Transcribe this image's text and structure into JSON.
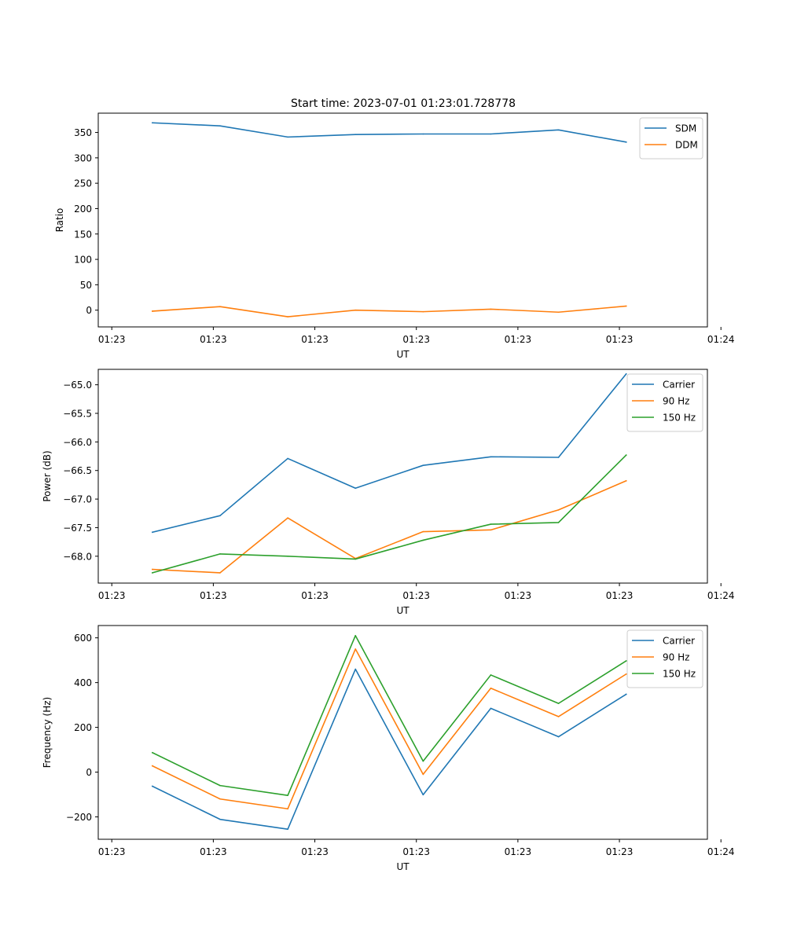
{
  "figure": {
    "title": "Start time: 2023-07-01 01:23:01.728778"
  },
  "chart_data": [
    {
      "type": "line",
      "xlabel": "UT",
      "ylabel": "Ratio",
      "x_tick_labels": [
        "01:23",
        "01:23",
        "01:23",
        "01:23",
        "01:23",
        "01:23",
        "01:24"
      ],
      "x": [
        1,
        2,
        3,
        4,
        5,
        6,
        7,
        8
      ],
      "xlim": [
        0.2,
        9.2
      ],
      "x_ticks": [
        0.4,
        1.9,
        3.4,
        4.9,
        6.4,
        7.9,
        9.4
      ],
      "ylim": [
        -33,
        388
      ],
      "y_ticks": [
        0,
        50,
        100,
        150,
        200,
        250,
        300,
        350
      ],
      "y_tick_labels": [
        "0",
        "50",
        "100",
        "150",
        "200",
        "250",
        "300",
        "350"
      ],
      "legend": "top-right",
      "series": [
        {
          "name": "SDM",
          "color": "#1f77b4",
          "values": [
            369,
            363,
            341,
            346,
            347,
            347,
            355,
            331
          ]
        },
        {
          "name": "DDM",
          "color": "#ff7f0e",
          "values": [
            -2,
            7,
            -13,
            0,
            -3,
            2,
            -4,
            8
          ]
        }
      ]
    },
    {
      "type": "line",
      "xlabel": "UT",
      "ylabel": "Power (dB)",
      "x_tick_labels": [
        "01:23",
        "01:23",
        "01:23",
        "01:23",
        "01:23",
        "01:23",
        "01:24"
      ],
      "x": [
        1,
        2,
        3,
        4,
        5,
        6,
        7,
        8
      ],
      "xlim": [
        0.2,
        9.2
      ],
      "x_ticks": [
        0.4,
        1.9,
        3.4,
        4.9,
        6.4,
        7.9,
        9.4
      ],
      "ylim": [
        -68.47,
        -64.73
      ],
      "y_ticks": [
        -68.0,
        -67.5,
        -67.0,
        -66.5,
        -66.0,
        -65.5,
        -65.0
      ],
      "y_tick_labels": [
        "−68.0",
        "−67.5",
        "−67.0",
        "−66.5",
        "−66.0",
        "−65.5",
        "−65.0"
      ],
      "legend": "top-right",
      "series": [
        {
          "name": "Carrier",
          "color": "#1f77b4",
          "values": [
            -67.58,
            -67.29,
            -66.29,
            -66.81,
            -66.41,
            -66.26,
            -66.27,
            -64.81
          ]
        },
        {
          "name": "90 Hz",
          "color": "#ff7f0e",
          "values": [
            -68.23,
            -68.29,
            -67.33,
            -68.04,
            -67.57,
            -67.54,
            -67.19,
            -66.68
          ]
        },
        {
          "name": "150 Hz",
          "color": "#2ca02c",
          "values": [
            -68.29,
            -67.96,
            -68.0,
            -68.05,
            -67.72,
            -67.44,
            -67.41,
            -66.23
          ]
        }
      ]
    },
    {
      "type": "line",
      "xlabel": "UT",
      "ylabel": "Frequency (Hz)",
      "x_tick_labels": [
        "01:23",
        "01:23",
        "01:23",
        "01:23",
        "01:23",
        "01:23",
        "01:24"
      ],
      "x": [
        1,
        2,
        3,
        4,
        5,
        6,
        7,
        8
      ],
      "xlim": [
        0.2,
        9.2
      ],
      "x_ticks": [
        0.4,
        1.9,
        3.4,
        4.9,
        6.4,
        7.9,
        9.4
      ],
      "ylim": [
        -300,
        655
      ],
      "y_ticks": [
        -200,
        0,
        200,
        400,
        600
      ],
      "y_tick_labels": [
        "−200",
        "0",
        "200",
        "400",
        "600"
      ],
      "legend": "top-right",
      "series": [
        {
          "name": "Carrier",
          "color": "#1f77b4",
          "values": [
            -63,
            -211,
            -255,
            460,
            -101,
            285,
            158,
            348
          ]
        },
        {
          "name": "90 Hz",
          "color": "#ff7f0e",
          "values": [
            28,
            -120,
            -164,
            550,
            -10,
            375,
            248,
            438
          ]
        },
        {
          "name": "150 Hz",
          "color": "#2ca02c",
          "values": [
            87,
            -60,
            -104,
            610,
            49,
            434,
            307,
            497
          ]
        }
      ]
    }
  ]
}
